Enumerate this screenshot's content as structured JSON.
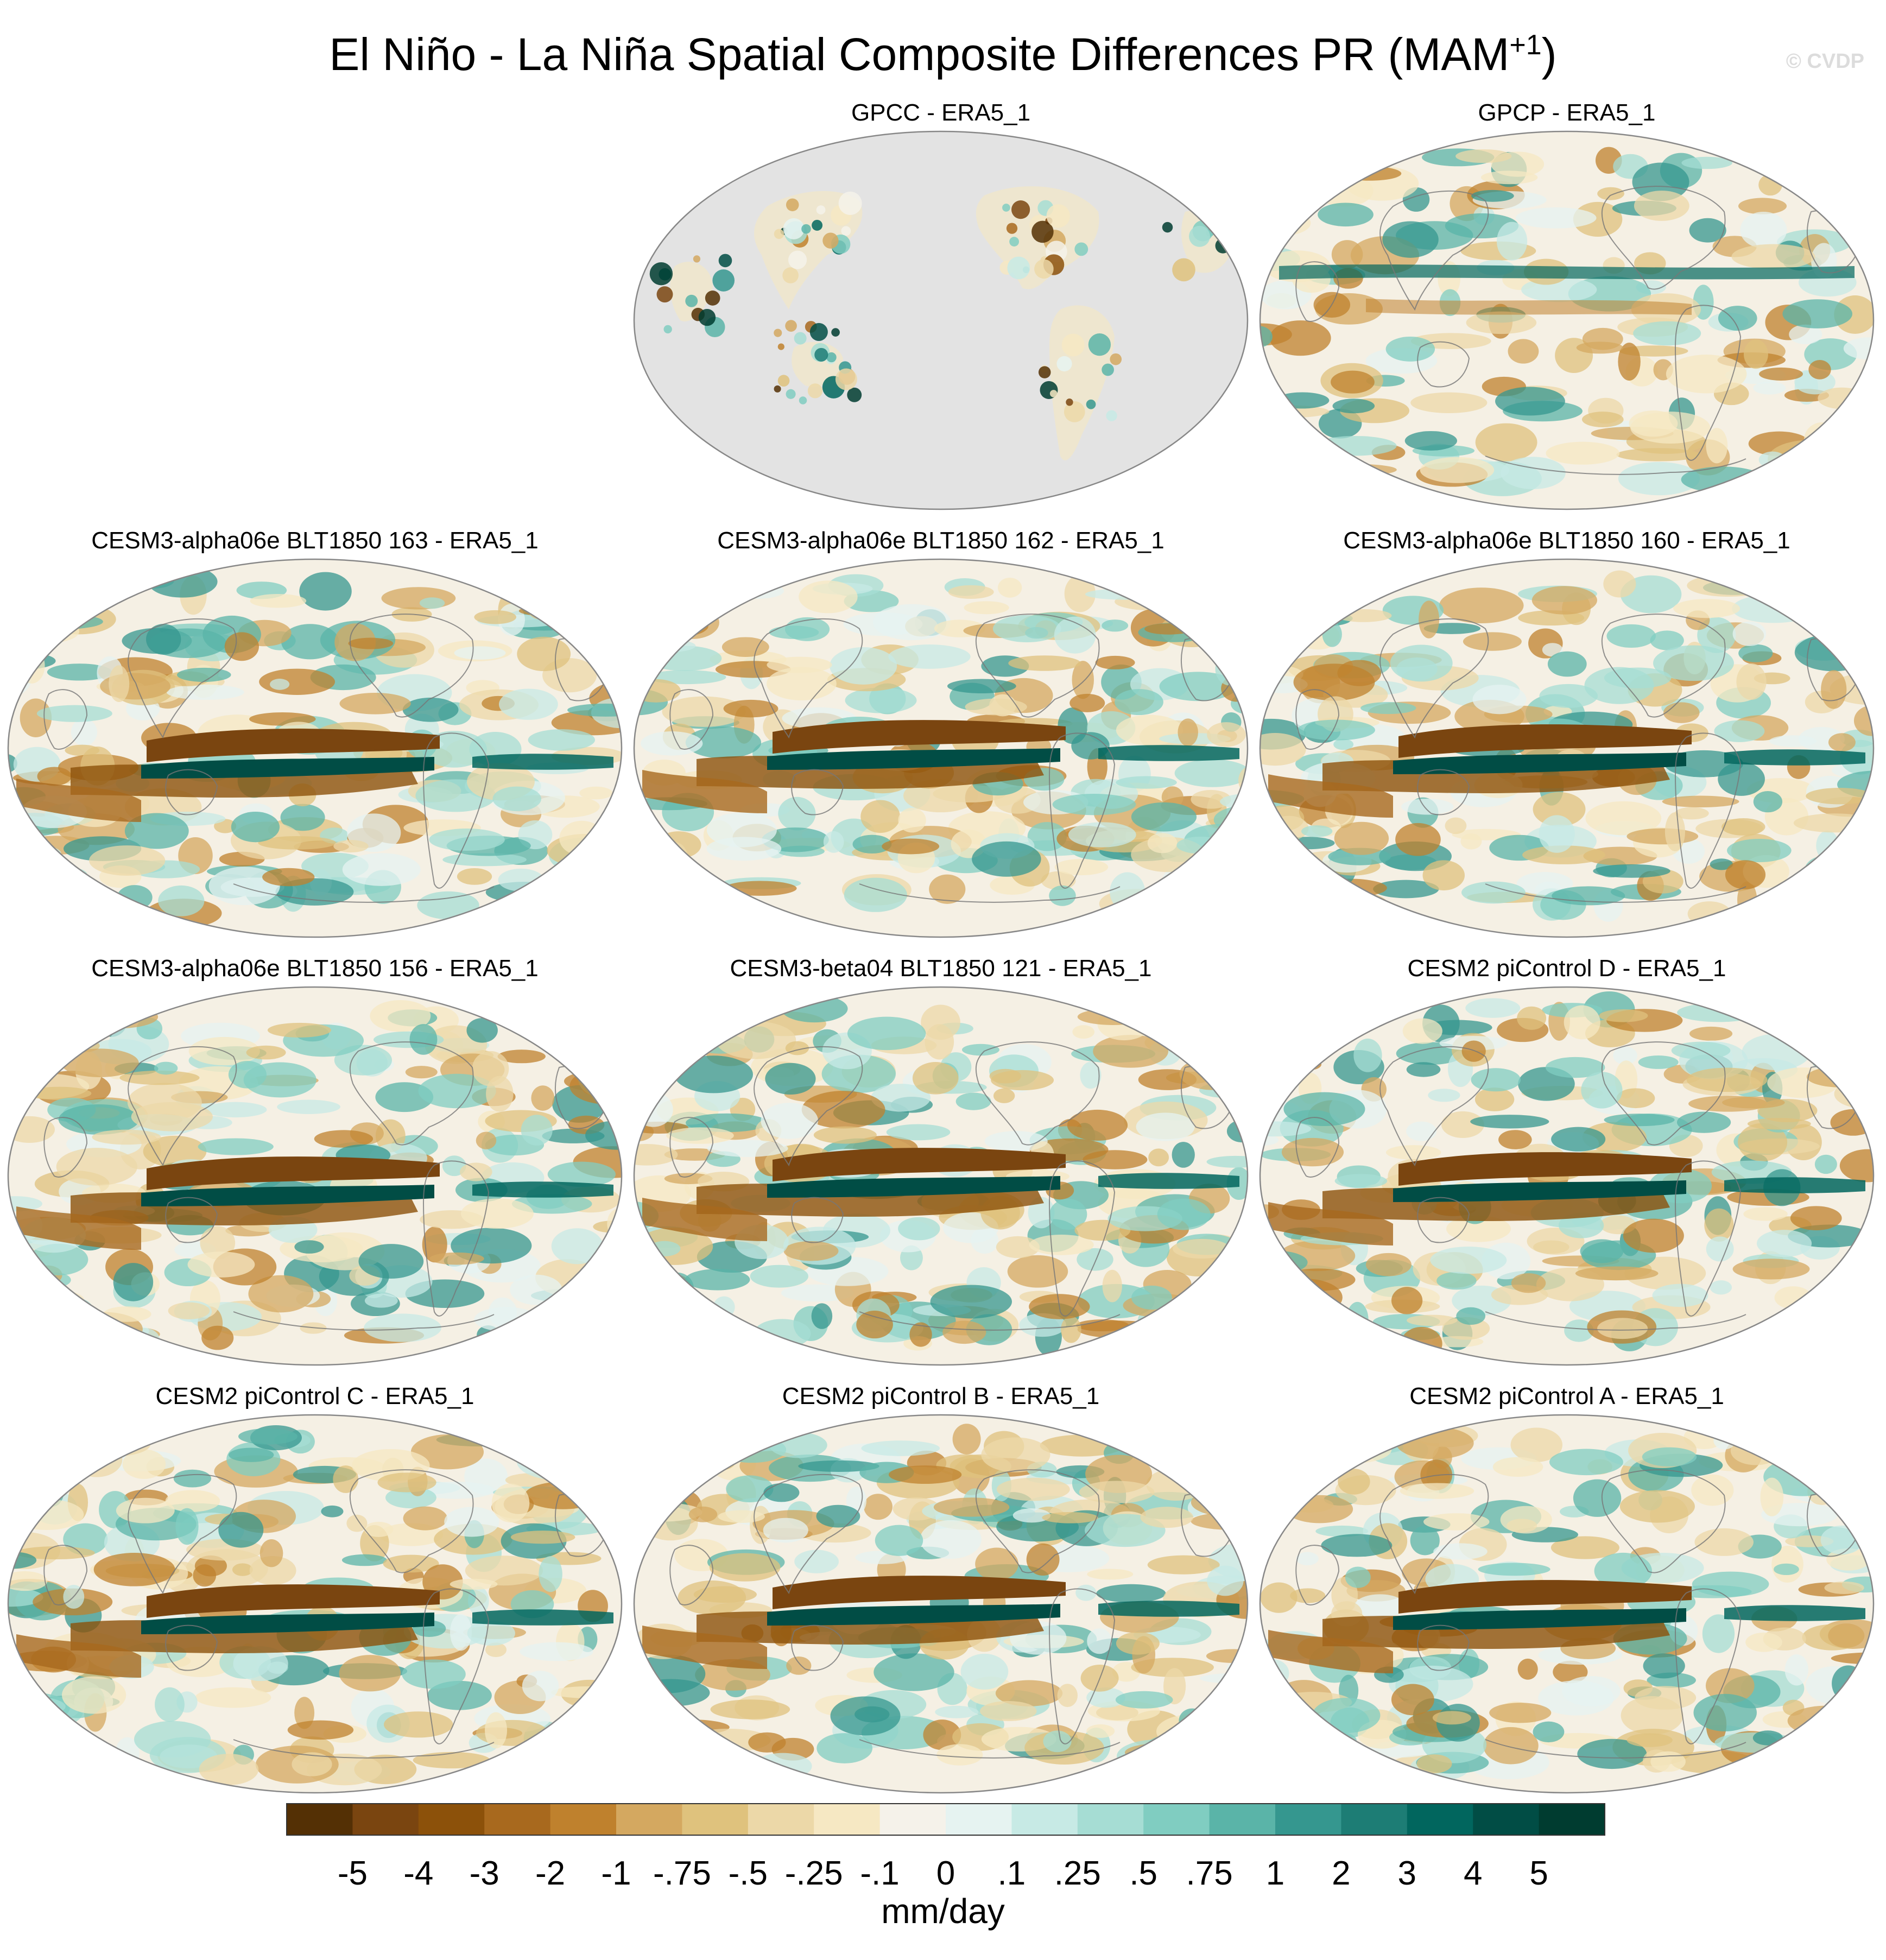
{
  "title_main": "El Niño - La Niña Spatial Composite Differences PR (MAM",
  "title_sup": "+1",
  "title_end": ")",
  "watermark": "© CVDP",
  "panels": [
    {
      "title": "GPCC - ERA5_1",
      "style": "land"
    },
    {
      "title": "GPCP - ERA5_1",
      "style": "obs"
    },
    {
      "title": "CESM3-alpha06e BLT1850 163 - ERA5_1",
      "style": "model"
    },
    {
      "title": "CESM3-alpha06e BLT1850 162 - ERA5_1",
      "style": "model"
    },
    {
      "title": "CESM3-alpha06e BLT1850 160 - ERA5_1",
      "style": "model"
    },
    {
      "title": "CESM3-alpha06e BLT1850 156 - ERA5_1",
      "style": "model"
    },
    {
      "title": "CESM3-beta04 BLT1850 121 - ERA5_1",
      "style": "model"
    },
    {
      "title": "CESM2 piControl D - ERA5_1",
      "style": "model"
    },
    {
      "title": "CESM2 piControl C - ERA5_1",
      "style": "model"
    },
    {
      "title": "CESM2 piControl B - ERA5_1",
      "style": "model"
    },
    {
      "title": "CESM2 piControl A - ERA5_1",
      "style": "model"
    }
  ],
  "colorbar": {
    "labels": [
      "-5",
      "-4",
      "-3",
      "-2",
      "-1",
      "-.75",
      "-.5",
      "-.25",
      "-.1",
      "0",
      ".1",
      ".25",
      ".5",
      ".75",
      "1",
      "2",
      "3",
      "4",
      "5"
    ],
    "colors": [
      "#543005",
      "#7a4510",
      "#8c510a",
      "#a8691e",
      "#bf812d",
      "#d4a860",
      "#dfc27d",
      "#ecd8a8",
      "#f6e8c3",
      "#f5f2ea",
      "#e6f3f1",
      "#c7eae5",
      "#a6ddd4",
      "#80cdc1",
      "#5ab4a8",
      "#35978f",
      "#1d7d75",
      "#01665e",
      "#014d45",
      "#003c30"
    ],
    "units": "mm/day"
  }
}
